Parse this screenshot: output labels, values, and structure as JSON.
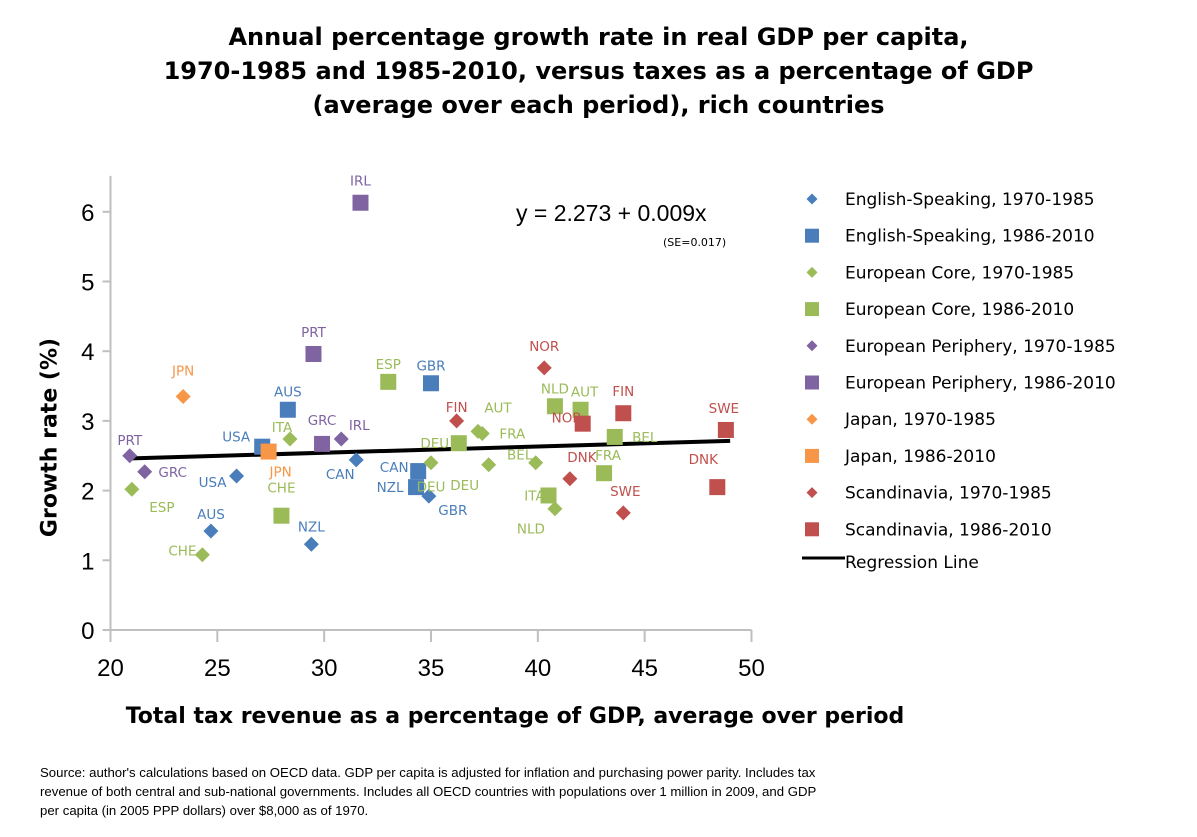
{
  "chart_data": {
    "type": "scatter",
    "title": [
      "Annual percentage growth rate in real GDP per capita,",
      "1970-1985 and 1985-2010, versus taxes as a percentage of GDP",
      "(average over each period), rich countries"
    ],
    "xlabel": "Total tax revenue as a percentage of GDP, average over period",
    "ylabel": "Growth rate (%)",
    "xlim": [
      20,
      50
    ],
    "ylim": [
      0,
      6.3
    ],
    "xticks": [
      20,
      25,
      30,
      35,
      40,
      45,
      50
    ],
    "yticks": [
      0,
      1,
      2,
      3,
      4,
      5,
      6
    ],
    "grid": false,
    "legend_position": "right",
    "regression": {
      "intercept": 2.273,
      "slope": 0.009,
      "x_range": [
        20.8,
        49.0
      ],
      "label": "Regression Line",
      "equation": "y = 2.273 + 0.009x",
      "se": "(SE=0.017)"
    },
    "series": [
      {
        "name": "English-Speaking, 1970-1985",
        "marker": "diamond",
        "color": "#4a7ebb",
        "points": [
          {
            "label": "USA",
            "x": 25.9,
            "y": 2.21
          },
          {
            "label": "AUS",
            "x": 24.7,
            "y": 1.42
          },
          {
            "label": "NZL",
            "x": 29.4,
            "y": 1.23
          },
          {
            "label": "CAN",
            "x": 31.5,
            "y": 2.44
          },
          {
            "label": "GBR",
            "x": 34.9,
            "y": 1.92
          }
        ]
      },
      {
        "name": "English-Speaking, 1986-2010",
        "marker": "square",
        "color": "#4a7ebb",
        "points": [
          {
            "label": "USA",
            "x": 27.1,
            "y": 2.63
          },
          {
            "label": "AUS",
            "x": 28.3,
            "y": 3.16
          },
          {
            "label": "GBR",
            "x": 35.0,
            "y": 3.54
          },
          {
            "label": "CAN",
            "x": 34.4,
            "y": 2.28
          },
          {
            "label": "NZL",
            "x": 34.3,
            "y": 2.05
          }
        ]
      },
      {
        "name": "European Core, 1970-1985",
        "marker": "diamond",
        "color": "#9bbb59",
        "points": [
          {
            "label": "ESP",
            "x": 21.0,
            "y": 2.02
          },
          {
            "label": "CHE",
            "x": 24.3,
            "y": 1.08
          },
          {
            "label": "ITA",
            "x": 28.4,
            "y": 2.74
          },
          {
            "label": "DEU",
            "x": 35.0,
            "y": 2.4
          },
          {
            "label": "AUT",
            "x": 37.2,
            "y": 2.85
          },
          {
            "label": "FRA",
            "x": 37.4,
            "y": 2.82
          },
          {
            "label": "DEU",
            "x": 37.7,
            "y": 2.37
          },
          {
            "label": "BEL",
            "x": 39.9,
            "y": 2.4
          },
          {
            "label": "NLD",
            "x": 40.8,
            "y": 1.74
          }
        ]
      },
      {
        "name": "European Core, 1986-2010",
        "marker": "square",
        "color": "#9bbb59",
        "points": [
          {
            "label": "CHE",
            "x": 28.0,
            "y": 1.64
          },
          {
            "label": "ESP",
            "x": 33.0,
            "y": 3.56
          },
          {
            "label": "DEU",
            "x": 36.3,
            "y": 2.68
          },
          {
            "label": "NLD",
            "x": 40.8,
            "y": 3.21
          },
          {
            "label": "AUT",
            "x": 42.0,
            "y": 3.16
          },
          {
            "label": "ITA",
            "x": 40.5,
            "y": 1.93
          },
          {
            "label": "BEL",
            "x": 43.6,
            "y": 2.77
          },
          {
            "label": "FRA",
            "x": 43.1,
            "y": 2.25
          }
        ]
      },
      {
        "name": "European Periphery, 1970-1985",
        "marker": "diamond",
        "color": "#8064a2",
        "points": [
          {
            "label": "PRT",
            "x": 20.9,
            "y": 2.5
          },
          {
            "label": "GRC",
            "x": 21.6,
            "y": 2.27
          },
          {
            "label": "IRL",
            "x": 30.8,
            "y": 2.74
          }
        ]
      },
      {
        "name": "European Periphery, 1986-2010",
        "marker": "square",
        "color": "#8064a2",
        "points": [
          {
            "label": "IRL",
            "x": 31.7,
            "y": 6.13
          },
          {
            "label": "PRT",
            "x": 29.5,
            "y": 3.96
          },
          {
            "label": "GRC",
            "x": 29.9,
            "y": 2.67
          }
        ]
      },
      {
        "name": "Japan, 1970-1985",
        "marker": "diamond",
        "color": "#f79646",
        "points": [
          {
            "label": "JPN",
            "x": 23.4,
            "y": 3.35
          }
        ]
      },
      {
        "name": "Japan, 1986-2010",
        "marker": "square",
        "color": "#f79646",
        "points": [
          {
            "label": "JPN",
            "x": 27.4,
            "y": 2.56
          }
        ]
      },
      {
        "name": "Scandinavia, 1970-1985",
        "marker": "diamond",
        "color": "#c0504d",
        "points": [
          {
            "label": "FIN",
            "x": 36.2,
            "y": 3.0
          },
          {
            "label": "NOR",
            "x": 40.3,
            "y": 3.76
          },
          {
            "label": "DNK",
            "x": 41.5,
            "y": 2.17
          },
          {
            "label": "SWE",
            "x": 44.0,
            "y": 1.68
          }
        ]
      },
      {
        "name": "Scandinavia, 1986-2010",
        "marker": "square",
        "color": "#c0504d",
        "points": [
          {
            "label": "FIN",
            "x": 44.0,
            "y": 3.11
          },
          {
            "label": "NOR",
            "x": 42.1,
            "y": 2.96
          },
          {
            "label": "SWE",
            "x": 48.8,
            "y": 2.87
          },
          {
            "label": "DNK",
            "x": 48.4,
            "y": 2.05
          }
        ]
      }
    ],
    "source_note": "Source: author's calculations based on OECD data.  GDP per capita is adjusted for inflation and purchasing power parity. Includes tax revenue of both central and sub-national governments.  Includes all OECD countries with populations over 1 million in 2009, and GDP per capita (in 2005 PPP dollars) over $8,000 as of 1970."
  }
}
